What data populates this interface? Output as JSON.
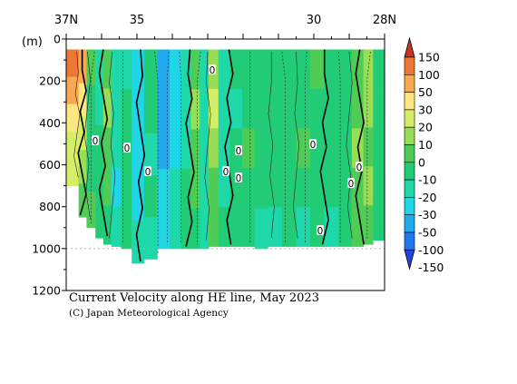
{
  "chart_data": {
    "type": "heatmap",
    "title": "Current Velocity along HE line, May 2023",
    "credit": "(C) Japan Meteorological Agency",
    "ylabel": "(m)",
    "x_range": [
      37,
      28
    ],
    "x_ticks": [
      {
        "value": 37,
        "label": "37N"
      },
      {
        "value": 35,
        "label": "35"
      },
      {
        "value": 30,
        "label": "30"
      },
      {
        "value": 28,
        "label": "28N"
      }
    ],
    "ylim": [
      1200,
      0
    ],
    "y_ticks": [
      {
        "value": 0,
        "label": "0"
      },
      {
        "value": 200,
        "label": "200"
      },
      {
        "value": 400,
        "label": "400"
      },
      {
        "value": 600,
        "label": "600"
      },
      {
        "value": 800,
        "label": "800"
      },
      {
        "value": 1000,
        "label": "1000"
      },
      {
        "value": 1200,
        "label": "1200"
      }
    ],
    "reference_line_depth": 1000,
    "colorbar": {
      "labels": [
        "150",
        "100",
        "50",
        "30",
        "20",
        "10",
        "0",
        "-10",
        "-20",
        "-30",
        "-50",
        "-100",
        "-150"
      ],
      "colors": [
        "#cc3322",
        "#ee7733",
        "#f7a850",
        "#ffe680",
        "#d6ee66",
        "#99dd55",
        "#4fcc55",
        "#22cc77",
        "#1ed8aa",
        "#1fd6e6",
        "#22aaee",
        "#2277ee",
        "#2244dd"
      ]
    },
    "contour_labels": [
      "0",
      "0",
      "0",
      "0",
      "0",
      "0",
      "0",
      "0",
      "0",
      "0",
      "0",
      "0"
    ],
    "columns": [
      {
        "lat": 36.75,
        "bottom": 700,
        "values": [
          150,
          80,
          40,
          25,
          20
        ]
      },
      {
        "lat": 36.55,
        "bottom": 850,
        "values": [
          60,
          30,
          20,
          10,
          5
        ]
      },
      {
        "lat": 36.3,
        "bottom": 900,
        "values": [
          5,
          -5,
          -10,
          -5,
          0
        ]
      },
      {
        "lat": 36.05,
        "bottom": 950,
        "values": [
          -20,
          -15,
          -10,
          -10,
          -5
        ]
      },
      {
        "lat": 35.85,
        "bottom": 980,
        "values": [
          5,
          10,
          5,
          0,
          -5
        ]
      },
      {
        "lat": 35.6,
        "bottom": 990,
        "values": [
          -15,
          -15,
          -20,
          -25,
          -20
        ]
      },
      {
        "lat": 35.3,
        "bottom": 1000,
        "values": [
          -15,
          -10,
          -10,
          -5,
          -10
        ]
      },
      {
        "lat": 35.0,
        "bottom": 1070,
        "values": [
          -30,
          -25,
          -30,
          -30,
          -20
        ]
      },
      {
        "lat": 34.6,
        "bottom": 1050,
        "values": [
          -10,
          -10,
          -15,
          -10,
          -15
        ]
      },
      {
        "lat": 34.25,
        "bottom": 1000,
        "values": [
          -45,
          -40,
          -35,
          -30,
          -30
        ]
      },
      {
        "lat": 33.9,
        "bottom": 1000,
        "values": [
          -25,
          -30,
          -25,
          -20,
          -20
        ]
      },
      {
        "lat": 33.6,
        "bottom": 1000,
        "values": [
          -15,
          -15,
          -15,
          -10,
          -10
        ]
      },
      {
        "lat": 33.35,
        "bottom": 1000,
        "values": [
          5,
          15,
          5,
          5,
          -5
        ]
      },
      {
        "lat": 33.1,
        "bottom": 1000,
        "values": [
          -15,
          -15,
          -15,
          -20,
          -15
        ]
      },
      {
        "lat": 32.85,
        "bottom": 990,
        "values": [
          15,
          20,
          10,
          5,
          0
        ]
      },
      {
        "lat": 32.55,
        "bottom": 990,
        "values": [
          -15,
          -20,
          -15,
          -15,
          -10
        ]
      },
      {
        "lat": 32.2,
        "bottom": 990,
        "values": [
          -10,
          -15,
          -10,
          -5,
          -10
        ]
      },
      {
        "lat": 31.85,
        "bottom": 990,
        "values": [
          -5,
          -5,
          0,
          -5,
          -10
        ]
      },
      {
        "lat": 31.5,
        "bottom": 1000,
        "values": [
          -5,
          -10,
          -10,
          -5,
          -15
        ]
      },
      {
        "lat": 31.1,
        "bottom": 990,
        "values": [
          -10,
          -5,
          -5,
          -10,
          -15
        ]
      },
      {
        "lat": 30.7,
        "bottom": 990,
        "values": [
          -10,
          -5,
          -5,
          -10,
          -10
        ]
      },
      {
        "lat": 30.3,
        "bottom": 990,
        "values": [
          -5,
          -10,
          0,
          -5,
          -15
        ]
      },
      {
        "lat": 29.9,
        "bottom": 990,
        "values": [
          0,
          -5,
          -5,
          -10,
          -10
        ]
      },
      {
        "lat": 29.5,
        "bottom": 990,
        "values": [
          -10,
          -10,
          -5,
          -5,
          -15
        ]
      },
      {
        "lat": 29.1,
        "bottom": 990,
        "values": [
          -10,
          -10,
          -5,
          -10,
          -10
        ]
      },
      {
        "lat": 28.75,
        "bottom": 990,
        "values": [
          5,
          0,
          10,
          5,
          0
        ]
      },
      {
        "lat": 28.45,
        "bottom": 980,
        "values": [
          15,
          10,
          5,
          10,
          5
        ]
      },
      {
        "lat": 28.2,
        "bottom": 960,
        "values": [
          -10,
          -5,
          -10,
          -10,
          -10
        ]
      }
    ]
  }
}
